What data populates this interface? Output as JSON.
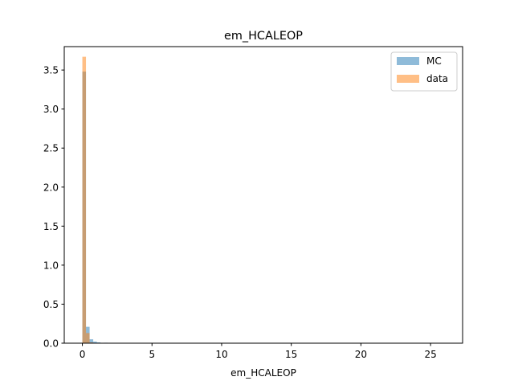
{
  "chart_data": {
    "type": "bar",
    "title": "em_HCALEOP",
    "xlabel": "em_HCALEOP",
    "ylabel": "",
    "xlim": [
      -1.3,
      27.3
    ],
    "ylim": [
      0,
      3.8
    ],
    "xticks": [
      0,
      5,
      10,
      15,
      20,
      25
    ],
    "xtick_labels": [
      "0",
      "5",
      "10",
      "15",
      "20",
      "25"
    ],
    "yticks": [
      0.0,
      0.5,
      1.0,
      1.5,
      2.0,
      2.5,
      3.0,
      3.5
    ],
    "ytick_labels": [
      "0.0",
      "0.5",
      "1.0",
      "1.5",
      "2.0",
      "2.5",
      "3.0",
      "3.5"
    ],
    "legend_position": "top-right",
    "grid": false,
    "series": [
      {
        "name": "MC",
        "color": "#1f77b4",
        "alpha": 0.5,
        "bins": [
          {
            "x0": 0.0,
            "x1": 0.26,
            "value": 3.48
          },
          {
            "x0": 0.26,
            "x1": 0.52,
            "value": 0.21
          },
          {
            "x0": 0.52,
            "x1": 0.78,
            "value": 0.05
          },
          {
            "x0": 0.78,
            "x1": 1.04,
            "value": 0.02
          },
          {
            "x0": 1.04,
            "x1": 1.3,
            "value": 0.01
          },
          {
            "x0": 1.56,
            "x1": 1.82,
            "value": 0.006
          }
        ]
      },
      {
        "name": "data",
        "color": "#ff7f0e",
        "alpha": 0.5,
        "bins": [
          {
            "x0": 0.0,
            "x1": 0.26,
            "value": 3.67
          },
          {
            "x0": 0.26,
            "x1": 0.52,
            "value": 0.13
          },
          {
            "x0": 0.52,
            "x1": 0.78,
            "value": 0.01
          }
        ]
      }
    ]
  }
}
